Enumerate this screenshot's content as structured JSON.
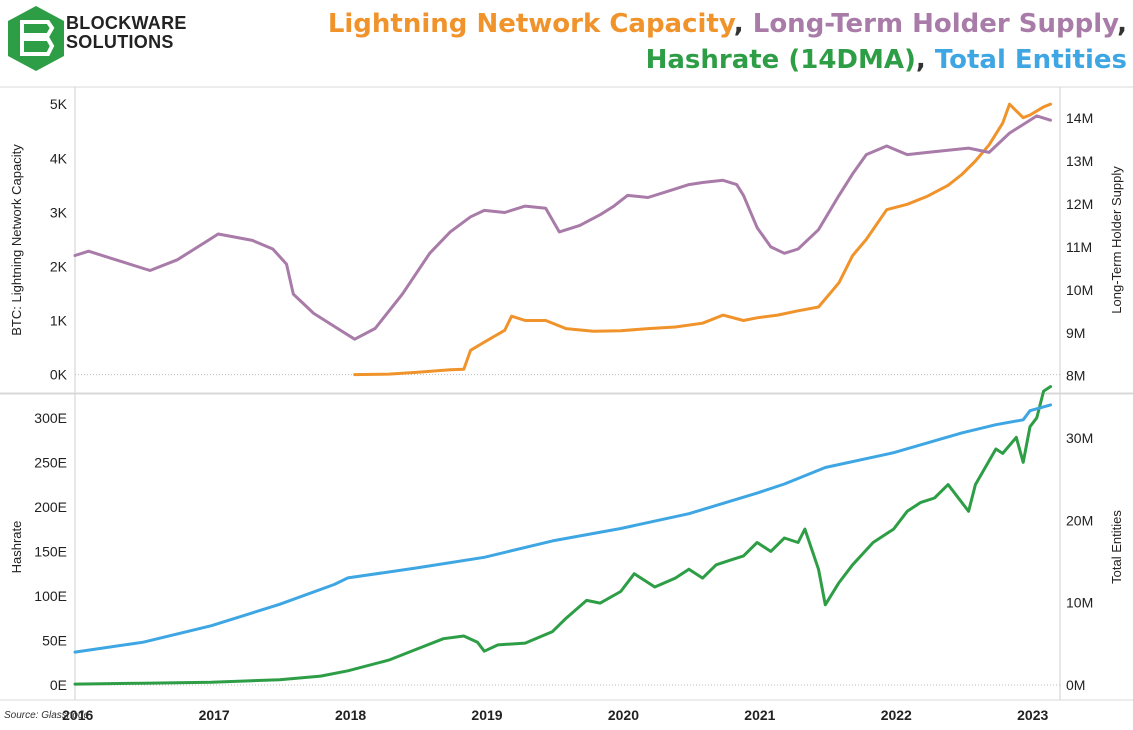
{
  "brand": {
    "line1": "BLOCKWARE",
    "line2": "SOLUTIONS"
  },
  "title": {
    "part1": "Lightning Network Capacity",
    "part2": "Long-Term Holder Supply",
    "part3": "Hashrate (14DMA)",
    "part4": "Total Entities",
    "sep": ",",
    "colors": {
      "lightning": "#f0932b",
      "lth": "#a87ba8",
      "hashrate": "#2e9e46",
      "entities": "#3ea6e3"
    }
  },
  "source": "Source: Glassnode",
  "chart_data": [
    {
      "type": "line",
      "panel": "top",
      "x_ticks": [
        2016,
        2017,
        2018,
        2019,
        2020,
        2021,
        2022,
        2023
      ],
      "xlim": [
        2016.0,
        2023.22
      ],
      "left_axis": {
        "label": "BTC: Lightning Network Capacity",
        "ticks": [
          "0K",
          "1K",
          "2K",
          "3K",
          "4K",
          "5K"
        ],
        "tick_values": [
          0,
          1000,
          2000,
          3000,
          4000,
          5000
        ],
        "ylim": [
          -100,
          5300
        ]
      },
      "right_axis": {
        "label": "Long-Term Holder Supply",
        "ticks": [
          "8M",
          "9M",
          "10M",
          "11M",
          "12M",
          "13M",
          "14M"
        ],
        "tick_values": [
          8000000,
          9000000,
          10000000,
          11000000,
          12000000,
          13000000,
          14000000
        ],
        "ylim": [
          7900000,
          14700000
        ]
      },
      "series": [
        {
          "name": "Lightning Network Capacity",
          "axis": "left",
          "color": "#f0932b",
          "x": [
            2018.05,
            2018.3,
            2018.5,
            2018.75,
            2018.85,
            2018.9,
            2019.0,
            2019.15,
            2019.2,
            2019.3,
            2019.45,
            2019.6,
            2019.8,
            2020.0,
            2020.2,
            2020.4,
            2020.6,
            2020.75,
            2020.9,
            2021.0,
            2021.15,
            2021.3,
            2021.45,
            2021.55,
            2021.6,
            2021.7,
            2021.8,
            2021.95,
            2022.1,
            2022.25,
            2022.4,
            2022.5,
            2022.6,
            2022.7,
            2022.8,
            2022.85,
            2022.95,
            2023.0,
            2023.1,
            2023.15
          ],
          "y": [
            0,
            10,
            40,
            90,
            100,
            450,
            600,
            820,
            1080,
            1000,
            1000,
            850,
            800,
            810,
            850,
            880,
            950,
            1100,
            1000,
            1050,
            1100,
            1180,
            1250,
            1550,
            1700,
            2200,
            2500,
            3050,
            3150,
            3300,
            3500,
            3700,
            3950,
            4250,
            4650,
            5000,
            4750,
            4800,
            4950,
            5000
          ]
        },
        {
          "name": "Long-Term Holder Supply",
          "axis": "right",
          "color": "#a87ba8",
          "x": [
            2016.0,
            2016.1,
            2016.3,
            2016.55,
            2016.75,
            2016.95,
            2017.05,
            2017.3,
            2017.45,
            2017.55,
            2017.6,
            2017.75,
            2017.95,
            2018.05,
            2018.2,
            2018.4,
            2018.6,
            2018.75,
            2018.9,
            2019.0,
            2019.15,
            2019.3,
            2019.45,
            2019.55,
            2019.7,
            2019.85,
            2019.95,
            2020.05,
            2020.2,
            2020.35,
            2020.5,
            2020.6,
            2020.75,
            2020.85,
            2020.9,
            2021.0,
            2021.1,
            2021.2,
            2021.3,
            2021.45,
            2021.6,
            2021.7,
            2021.8,
            2021.95,
            2022.1,
            2022.25,
            2022.4,
            2022.55,
            2022.7,
            2022.85,
            2022.95,
            2023.05,
            2023.15
          ],
          "y": [
            10800000,
            10900000,
            10700000,
            10450000,
            10700000,
            11100000,
            11300000,
            11150000,
            10950000,
            10600000,
            9900000,
            9450000,
            9050000,
            8850000,
            9100000,
            9900000,
            10850000,
            11350000,
            11700000,
            11850000,
            11800000,
            11950000,
            11900000,
            11350000,
            11500000,
            11750000,
            11950000,
            12200000,
            12150000,
            12300000,
            12450000,
            12500000,
            12550000,
            12450000,
            12200000,
            11450000,
            11000000,
            10850000,
            10950000,
            11400000,
            12200000,
            12700000,
            13150000,
            13350000,
            13150000,
            13200000,
            13250000,
            13300000,
            13200000,
            13650000,
            13850000,
            14050000,
            13950000
          ]
        }
      ]
    },
    {
      "type": "line",
      "panel": "bottom",
      "x_ticks": [
        2016,
        2017,
        2018,
        2019,
        2020,
        2021,
        2022,
        2023
      ],
      "x_tick_labels": [
        "2016",
        "2017",
        "2018",
        "2019",
        "2020",
        "2021",
        "2022",
        "2023"
      ],
      "xlim": [
        2016.0,
        2023.22
      ],
      "left_axis": {
        "label": "Hashrate",
        "ticks": [
          "0E",
          "50E",
          "100E",
          "150E",
          "200E",
          "250E",
          "300E"
        ],
        "tick_values": [
          0,
          50,
          100,
          150,
          200,
          250,
          300
        ],
        "ylim": [
          0,
          320
        ]
      },
      "right_axis": {
        "label": "Total Entities",
        "ticks": [
          "0M",
          "10M",
          "20M",
          "30M"
        ],
        "tick_values": [
          0,
          10000000,
          20000000,
          30000000
        ],
        "ylim": [
          0,
          34600000
        ]
      },
      "series": [
        {
          "name": "Hashrate (14DMA)",
          "axis": "left",
          "color": "#2e9e46",
          "x": [
            2016.0,
            2016.5,
            2017.0,
            2017.5,
            2017.8,
            2018.0,
            2018.3,
            2018.5,
            2018.7,
            2018.85,
            2018.95,
            2019.0,
            2019.1,
            2019.3,
            2019.5,
            2019.6,
            2019.75,
            2019.85,
            2020.0,
            2020.1,
            2020.25,
            2020.4,
            2020.5,
            2020.6,
            2020.7,
            2020.8,
            2020.9,
            2021.0,
            2021.1,
            2021.2,
            2021.3,
            2021.35,
            2021.45,
            2021.5,
            2021.6,
            2021.7,
            2021.85,
            2022.0,
            2022.1,
            2022.2,
            2022.3,
            2022.4,
            2022.55,
            2022.6,
            2022.75,
            2022.8,
            2022.9,
            2022.95,
            2023.0,
            2023.05,
            2023.1,
            2023.15
          ],
          "y": [
            1,
            2,
            3,
            6,
            10,
            16,
            28,
            40,
            52,
            55,
            48,
            38,
            45,
            47,
            60,
            75,
            95,
            92,
            105,
            125,
            110,
            120,
            130,
            120,
            135,
            140,
            145,
            160,
            150,
            165,
            160,
            175,
            130,
            90,
            115,
            135,
            160,
            175,
            195,
            205,
            210,
            225,
            195,
            225,
            265,
            260,
            278,
            250,
            290,
            300,
            330,
            335
          ]
        },
        {
          "name": "Total Entities",
          "axis": "right",
          "color": "#3ea6e3",
          "x": [
            2016.0,
            2016.5,
            2017.0,
            2017.5,
            2017.9,
            2018.0,
            2018.5,
            2019.0,
            2019.5,
            2020.0,
            2020.5,
            2021.0,
            2021.2,
            2021.5,
            2022.0,
            2022.5,
            2022.75,
            2022.95,
            2023.0,
            2023.15
          ],
          "y": [
            4000000,
            5200000,
            7200000,
            9800000,
            12200000,
            13000000,
            14200000,
            15500000,
            17500000,
            19000000,
            20800000,
            23300000,
            24400000,
            26400000,
            28200000,
            30600000,
            31600000,
            32200000,
            33300000,
            34000000
          ]
        }
      ]
    }
  ]
}
